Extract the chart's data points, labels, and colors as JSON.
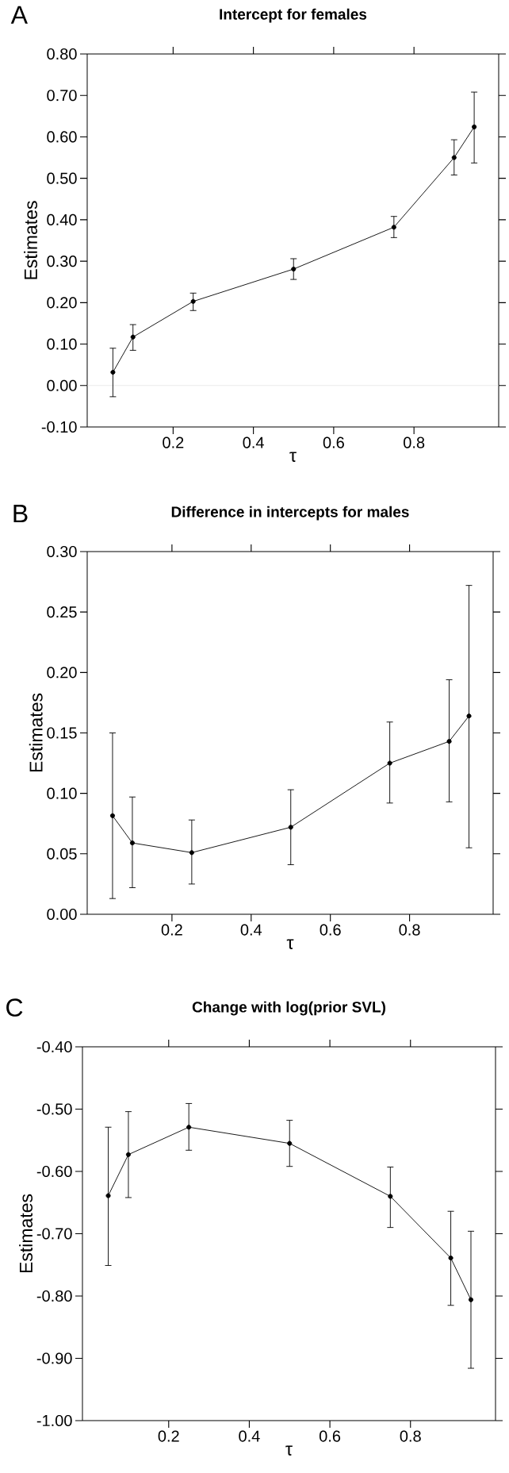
{
  "chart_data": [
    {
      "type": "line",
      "title": "Intercept for females",
      "xlabel": "τ",
      "ylabel": "Estimates",
      "annotations": [
        "A"
      ],
      "x": [
        0.05,
        0.1,
        0.25,
        0.5,
        0.75,
        0.9,
        0.95
      ],
      "series": [
        {
          "color": "#000000",
          "values": [
            0.032,
            0.117,
            0.203,
            0.281,
            0.382,
            0.55,
            0.624
          ],
          "errors": [
            [
              -0.027,
              0.09
            ],
            [
              0.085,
              0.147
            ],
            [
              0.181,
              0.223
            ],
            [
              0.256,
              0.306
            ],
            [
              0.357,
              0.408
            ],
            [
              0.508,
              0.593
            ],
            [
              0.537,
              0.708
            ]
          ]
        }
      ],
      "xlim": [
        -0.014,
        1.011
      ],
      "ylim": [
        -0.1,
        0.8
      ],
      "xticks": [
        0.2,
        0.4,
        0.6,
        0.8
      ],
      "yticks": [
        {
          "value": -0.1,
          "label": "-0.10"
        },
        {
          "value": 0,
          "label": "0.00"
        },
        {
          "value": 0.1,
          "label": "0.10"
        },
        {
          "value": 0.2,
          "label": "0.20"
        },
        {
          "value": 0.3,
          "label": "0.30"
        },
        {
          "value": 0.4,
          "label": "0.40"
        },
        {
          "value": 0.5,
          "label": "0.50"
        },
        {
          "value": 0.6,
          "label": "0.60"
        },
        {
          "value": 0.7,
          "label": "0.70"
        },
        {
          "value": 0.8,
          "label": "0.80"
        }
      ],
      "ref_lines": [
        {
          "axis": "y",
          "value": 0,
          "color": "#dddddd"
        }
      ],
      "marker": "circle",
      "line_style": "solid",
      "grid": false
    },
    {
      "type": "line",
      "title": "Difference in intercepts for males",
      "xlabel": "τ",
      "ylabel": "Estimates",
      "annotations": [
        "B"
      ],
      "x": [
        0.05,
        0.1,
        0.25,
        0.5,
        0.75,
        0.9,
        0.95
      ],
      "series": [
        {
          "color": "#000000",
          "values": [
            0.0815,
            0.059,
            0.051,
            0.072,
            0.125,
            0.143,
            0.164
          ],
          "errors": [
            [
              0.013,
              0.15
            ],
            [
              0.022,
              0.097
            ],
            [
              0.025,
              0.078
            ],
            [
              0.041,
              0.103
            ],
            [
              0.092,
              0.159
            ],
            [
              0.093,
              0.194
            ],
            [
              0.055,
              0.272
            ]
          ]
        }
      ],
      "xlim": [
        -0.014,
        1.011
      ],
      "ylim": [
        0,
        0.3
      ],
      "xticks": [
        0.2,
        0.4,
        0.6,
        0.8
      ],
      "yticks": [
        {
          "value": 0,
          "label": "0.00"
        },
        {
          "value": 0.05,
          "label": "0.05"
        },
        {
          "value": 0.1,
          "label": "0.10"
        },
        {
          "value": 0.15,
          "label": "0.15"
        },
        {
          "value": 0.2,
          "label": "0.20"
        },
        {
          "value": 0.25,
          "label": "0.25"
        },
        {
          "value": 0.3,
          "label": "0.30"
        }
      ],
      "marker": "circle",
      "line_style": "solid",
      "grid": false
    },
    {
      "type": "line",
      "title": "Change with log(prior SVL)",
      "xlabel": "τ",
      "ylabel": "Estimates",
      "annotations": [
        "C"
      ],
      "x": [
        0.05,
        0.1,
        0.25,
        0.5,
        0.75,
        0.9,
        0.95
      ],
      "series": [
        {
          "color": "#000000",
          "values": [
            -0.639,
            -0.573,
            -0.529,
            -0.555,
            -0.64,
            -0.739,
            -0.806
          ],
          "errors": [
            [
              -0.751,
              -0.529
            ],
            [
              -0.642,
              -0.504
            ],
            [
              -0.566,
              -0.491
            ],
            [
              -0.592,
              -0.518
            ],
            [
              -0.69,
              -0.593
            ],
            [
              -0.815,
              -0.664
            ],
            [
              -0.916,
              -0.696
            ]
          ]
        }
      ],
      "xlim": [
        -0.014,
        1.011
      ],
      "ylim": [
        -1.0,
        -0.4
      ],
      "xticks": [
        0.2,
        0.4,
        0.6,
        0.8
      ],
      "yticks": [
        {
          "value": -1.0,
          "label": "-1.00"
        },
        {
          "value": -0.9,
          "label": "-0.90"
        },
        {
          "value": -0.8,
          "label": "-0.80"
        },
        {
          "value": -0.7,
          "label": "-0.70"
        },
        {
          "value": -0.6,
          "label": "-0.60"
        },
        {
          "value": -0.5,
          "label": "-0.50"
        },
        {
          "value": -0.4,
          "label": "-0.40"
        }
      ],
      "marker": "circle",
      "line_style": "solid",
      "grid": false
    }
  ]
}
